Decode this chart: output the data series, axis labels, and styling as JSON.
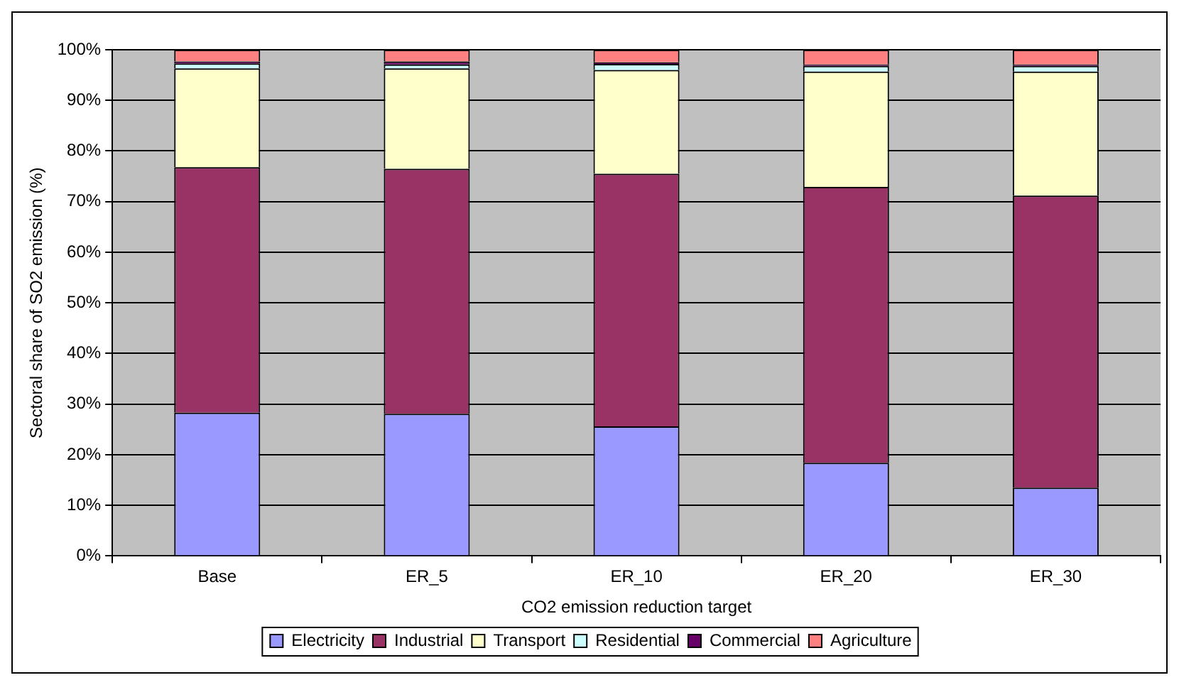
{
  "chart_data": {
    "type": "bar",
    "stacked": true,
    "xlabel": "CO2 emission reduction target",
    "ylabel": "Sectoral share of SO2 emission (%)",
    "categories": [
      "Base",
      "ER_5",
      "ER_10",
      "ER_20",
      "ER_30"
    ],
    "series": [
      {
        "name": "Electricity",
        "color": "#9999ff",
        "values": [
          28.3,
          28.1,
          25.6,
          18.4,
          13.5
        ]
      },
      {
        "name": "Industrial",
        "color": "#993366",
        "values": [
          48.5,
          48.4,
          49.9,
          54.5,
          57.7
        ]
      },
      {
        "name": "Transport",
        "color": "#ffffcc",
        "values": [
          19.5,
          19.8,
          20.5,
          22.8,
          24.5
        ]
      },
      {
        "name": "Residential",
        "color": "#ccffff",
        "values": [
          1.0,
          0.8,
          1.2,
          1.1,
          1.1
        ]
      },
      {
        "name": "Commercial",
        "color": "#660066",
        "values": [
          0.4,
          0.6,
          0.3,
          0.3,
          0.3
        ]
      },
      {
        "name": "Agriculture",
        "color": "#ff8080",
        "values": [
          2.3,
          2.3,
          2.5,
          2.9,
          2.9
        ]
      }
    ],
    "ylim": [
      0,
      100
    ],
    "yticks": [
      {
        "value": 0,
        "label": "0%"
      },
      {
        "value": 10,
        "label": "10%"
      },
      {
        "value": 20,
        "label": "20%"
      },
      {
        "value": 30,
        "label": "30%"
      },
      {
        "value": 40,
        "label": "40%"
      },
      {
        "value": 50,
        "label": "50%"
      },
      {
        "value": 60,
        "label": "60%"
      },
      {
        "value": 70,
        "label": "70%"
      },
      {
        "value": 80,
        "label": "80%"
      },
      {
        "value": 90,
        "label": "90%"
      },
      {
        "value": 100,
        "label": "100%"
      }
    ],
    "grid": "y",
    "legend": "bottom"
  }
}
